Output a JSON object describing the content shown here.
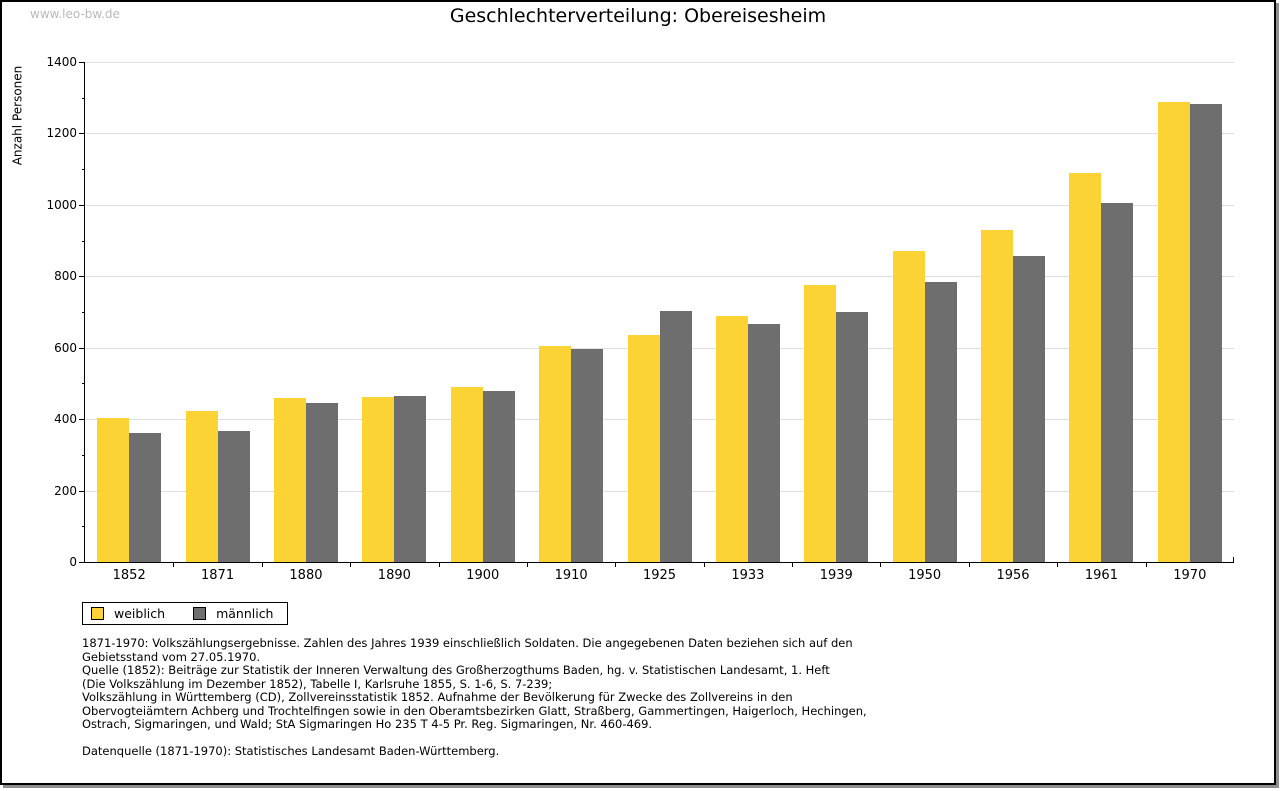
{
  "watermark": "www.leo-bw.de",
  "title": "Geschlechterverteilung: Obereisesheim",
  "chart_data": {
    "type": "bar",
    "title": "Geschlechterverteilung: Obereisesheim",
    "xlabel": "",
    "ylabel": "Anzahl Personen",
    "ylim": [
      0,
      1400
    ],
    "yticks": [
      0,
      200,
      400,
      600,
      800,
      1000,
      1200,
      1400
    ],
    "yticks_minor": [
      100,
      300,
      500,
      700,
      900,
      1100,
      1300
    ],
    "grid": true,
    "gridline_color": "#e0e0e0",
    "legend_position": "bottom-left",
    "categories": [
      "1852",
      "1871",
      "1880",
      "1890",
      "1900",
      "1910",
      "1925",
      "1933",
      "1939",
      "1950",
      "1956",
      "1961",
      "1970"
    ],
    "series": [
      {
        "name": "weiblich",
        "color": "#fbd335",
        "values": [
          403,
          424,
          458,
          463,
          489,
          605,
          635,
          690,
          775,
          871,
          930,
          1088,
          1289
        ]
      },
      {
        "name": "männlich",
        "color": "#6e6e6e",
        "values": [
          360,
          366,
          444,
          466,
          478,
          595,
          704,
          667,
          699,
          783,
          858,
          1006,
          1283
        ]
      }
    ]
  },
  "footnotes": [
    "1871-1970: Volkszählungsergebnisse. Zahlen des Jahres 1939 einschließlich Soldaten. Die angegebenen Daten beziehen sich auf den",
    "Gebietsstand vom 27.05.1970.",
    "Quelle (1852): Beiträge zur Statistik der Inneren Verwaltung des Großherzogthums Baden, hg. v. Statistischen Landesamt, 1. Heft",
    "(Die Volkszählung im Dezember 1852), Tabelle I, Karlsruhe 1855, S. 1-6, S. 7-239;",
    "Volkszählung in Württemberg (CD), Zollvereinsstatistik 1852. Aufnahme der Bevölkerung für Zwecke des Zollvereins in den",
    "Obervogteiämtern Achberg und Trochtelfingen sowie in den Oberamtsbezirken Glatt, Straßberg, Gammertingen, Haigerloch, Hechingen,",
    "Ostrach, Sigmaringen, und Wald; StA Sigmaringen Ho 235 T 4-5 Pr. Reg. Sigmaringen, Nr. 460-469."
  ],
  "datasource": "Datenquelle (1871-1970): Statistisches Landesamt Baden-Württemberg."
}
